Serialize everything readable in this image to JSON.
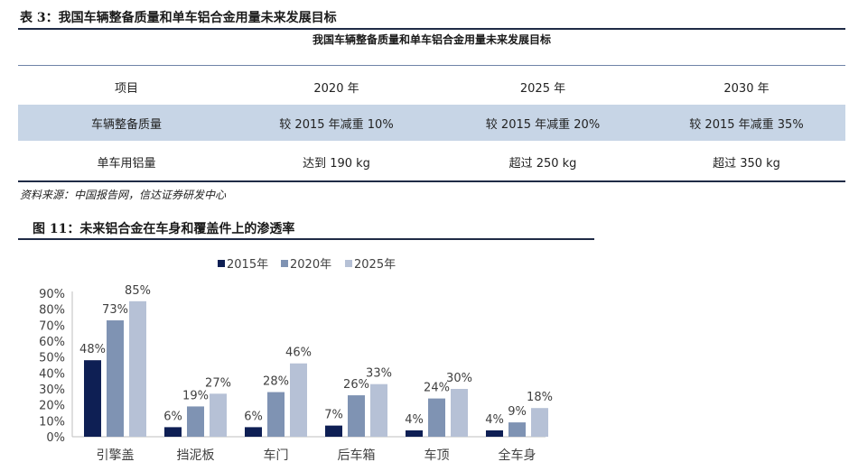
{
  "table": {
    "title": "表 3：我国车辆整备质量和单车铝合金用量未来发展目标",
    "caption": "我国车辆整备质量和单车铝合金用量未来发展目标",
    "header": [
      "项目",
      "2020 年",
      "2025 年",
      "2030 年"
    ],
    "rows": [
      [
        "车辆整备质量",
        "较 2015 年减重 10%",
        "较 2015 年减重 20%",
        "较 2015 年减重 35%"
      ],
      [
        "单车用铝量",
        "达到 190 kg",
        "超过 250 kg",
        "超过 350 kg"
      ]
    ],
    "source": "资料来源：中国报告网，信达证券研发中心"
  },
  "figure": {
    "title": "图 11：未来铝合金在车身和覆盖件上的渗透率"
  },
  "chart_data": {
    "type": "bar",
    "categories": [
      "引擎盖",
      "挡泥板",
      "车门",
      "后车箱",
      "车顶",
      "全车身"
    ],
    "series": [
      {
        "name": "2015年",
        "values": [
          48,
          6,
          6,
          7,
          4,
          4
        ],
        "color": "#0e1f54"
      },
      {
        "name": "2020年",
        "values": [
          73,
          19,
          28,
          26,
          24,
          9
        ],
        "color": "#7f93b3"
      },
      {
        "name": "2025年",
        "values": [
          85,
          27,
          46,
          33,
          30,
          18
        ],
        "color": "#b6c1d6"
      }
    ],
    "data_labels": [
      [
        "48%",
        "6%",
        "6%",
        "7%",
        "4%",
        "4%"
      ],
      [
        "73%",
        "19%",
        "28%",
        "26%",
        "24%",
        "9%"
      ],
      [
        "85%",
        "27%",
        "46%",
        "33%",
        "30%",
        "18%"
      ]
    ],
    "yticks": [
      "0%",
      "10%",
      "20%",
      "30%",
      "40%",
      "50%",
      "60%",
      "70%",
      "80%",
      "90%"
    ],
    "ylim": [
      0,
      90
    ],
    "legend_position": "top",
    "grid": false
  }
}
